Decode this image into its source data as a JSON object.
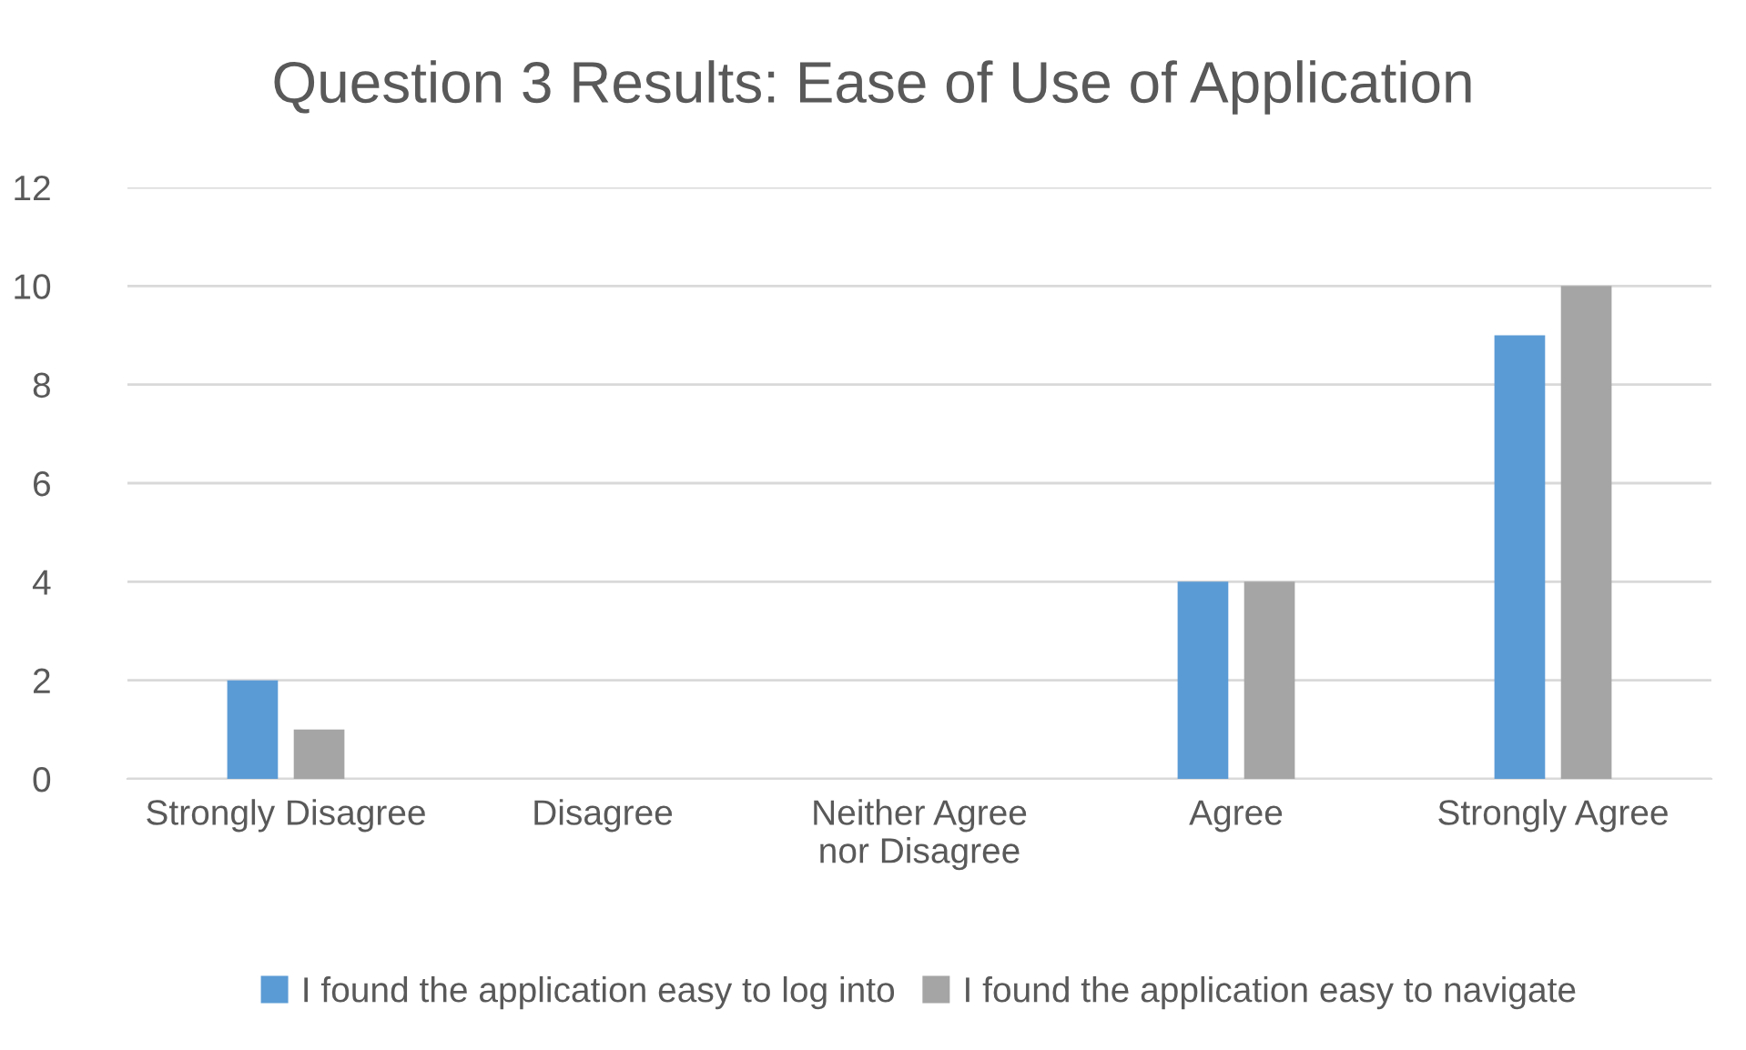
{
  "chart_data": {
    "type": "bar",
    "title": "Question 3 Results: Ease of Use of Application",
    "categories": [
      "Strongly Disagree",
      "Disagree",
      "Neither Agree\nnor Disagree",
      "Agree",
      "Strongly Agree"
    ],
    "series": [
      {
        "name": "I found the application easy to log into",
        "color": "#5b9bd5",
        "values": [
          2,
          0,
          0,
          4,
          9
        ]
      },
      {
        "name": "I found the application easy to navigate",
        "color": "#a5a5a5",
        "values": [
          1,
          0,
          0,
          4,
          10
        ]
      }
    ],
    "ylim": [
      0,
      12
    ],
    "yticks": [
      0,
      2,
      4,
      6,
      8,
      10,
      12
    ],
    "grid": "y",
    "legend": "bottom"
  }
}
